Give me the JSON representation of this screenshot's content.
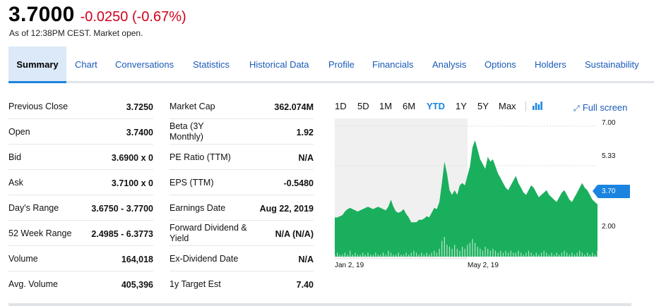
{
  "quote": {
    "price": "3.7000",
    "change": "-0.0250 (-0.67%)",
    "as_of": "As of 12:38PM CEST. Market open."
  },
  "tabs": [
    {
      "label": "Summary",
      "active": true
    },
    {
      "label": "Chart"
    },
    {
      "label": "Conversations"
    },
    {
      "label": "Statistics"
    },
    {
      "label": "Historical Data"
    },
    {
      "label": "Profile"
    },
    {
      "label": "Financials"
    },
    {
      "label": "Analysis"
    },
    {
      "label": "Options"
    },
    {
      "label": "Holders"
    },
    {
      "label": "Sustainability"
    }
  ],
  "left_table": [
    {
      "label": "Previous Close",
      "value": "3.7250"
    },
    {
      "label": "Open",
      "value": "3.7400"
    },
    {
      "label": "Bid",
      "value": "3.6900 x 0"
    },
    {
      "label": "Ask",
      "value": "3.7100 x 0"
    },
    {
      "label": "Day's Range",
      "value": "3.6750 - 3.7700"
    },
    {
      "label": "52 Week Range",
      "value": "2.4985 - 6.3773"
    },
    {
      "label": "Volume",
      "value": "164,018"
    },
    {
      "label": "Avg. Volume",
      "value": "405,396"
    }
  ],
  "right_table": [
    {
      "label": "Market Cap",
      "value": "362.074M"
    },
    {
      "label": "Beta (3Y Monthly)",
      "value": "1.92"
    },
    {
      "label": "PE Ratio (TTM)",
      "value": "N/A"
    },
    {
      "label": "EPS (TTM)",
      "value": "-0.5480"
    },
    {
      "label": "Earnings Date",
      "value": "Aug 22, 2019"
    },
    {
      "label": "Forward Dividend & Yield",
      "value": "N/A (N/A)"
    },
    {
      "label": "Ex-Dividend Date",
      "value": "N/A"
    },
    {
      "label": "1y Target Est",
      "value": "7.40"
    }
  ],
  "chart_controls": {
    "ranges": [
      "1D",
      "5D",
      "1M",
      "6M",
      "YTD",
      "1Y",
      "5Y",
      "Max"
    ],
    "active_range": "YTD",
    "chart_type_icon": "bar-chart-icon",
    "fullscreen_label": "Full screen",
    "fullscreen_icon": "expand-icon"
  },
  "chart_data": {
    "type": "area",
    "x_ticks": [
      "Jan 2, 19",
      "May 2, 19"
    ],
    "y_ticks": [
      "7.00",
      "5.33",
      "2.00"
    ],
    "ylim": [
      1.5,
      7.2
    ],
    "current_value_label": "3.70",
    "current_value": 3.7,
    "color": "#1aaf5d",
    "grid": true,
    "values": [
      3.15,
      3.15,
      3.2,
      3.25,
      3.4,
      3.5,
      3.55,
      3.5,
      3.45,
      3.4,
      3.45,
      3.5,
      3.55,
      3.6,
      3.55,
      3.5,
      3.55,
      3.6,
      3.55,
      3.5,
      3.45,
      3.6,
      3.9,
      3.6,
      3.4,
      3.35,
      3.4,
      3.5,
      3.3,
      3.15,
      2.95,
      2.95,
      2.95,
      3.05,
      3.05,
      3.1,
      3.2,
      3.15,
      3.35,
      3.55,
      3.5,
      3.8,
      4.6,
      5.5,
      5.0,
      4.3,
      4.1,
      4.3,
      4.1,
      4.5,
      4.6,
      4.5,
      4.9,
      5.3,
      6.1,
      6.4,
      6.0,
      5.6,
      5.4,
      5.2,
      5.7,
      5.5,
      5.6,
      5.3,
      5.0,
      4.8,
      4.6,
      4.4,
      4.3,
      4.5,
      4.7,
      4.9,
      4.6,
      4.4,
      4.2,
      4.1,
      4.3,
      4.5,
      4.4,
      4.2,
      4.0,
      4.1,
      4.2,
      4.3,
      4.1,
      4.0,
      3.9,
      3.8,
      4.0,
      4.2,
      4.3,
      4.1,
      3.9,
      3.8,
      4.0,
      4.2,
      4.4,
      4.6,
      4.4,
      4.3,
      4.1,
      3.9,
      3.8,
      3.7
    ],
    "volume": [
      1,
      2,
      1,
      1,
      2,
      1,
      3,
      1,
      2,
      1,
      1,
      2,
      1,
      2,
      1,
      1,
      2,
      1,
      1,
      2,
      1,
      3,
      2,
      1,
      1,
      2,
      1,
      1,
      2,
      1,
      2,
      3,
      2,
      1,
      2,
      1,
      2,
      1,
      2,
      3,
      2,
      4,
      8,
      10,
      6,
      5,
      4,
      6,
      4,
      3,
      5,
      4,
      6,
      7,
      9,
      7,
      5,
      4,
      3,
      5,
      4,
      3,
      4,
      3,
      2,
      3,
      2,
      3,
      2,
      3,
      2,
      2,
      3,
      2,
      1,
      2,
      3,
      2,
      1,
      2,
      1,
      2,
      3,
      2,
      1,
      2,
      1,
      2,
      1,
      2,
      3,
      2,
      1,
      2,
      1,
      2,
      3,
      2,
      1,
      2,
      1,
      2,
      1,
      3
    ]
  }
}
